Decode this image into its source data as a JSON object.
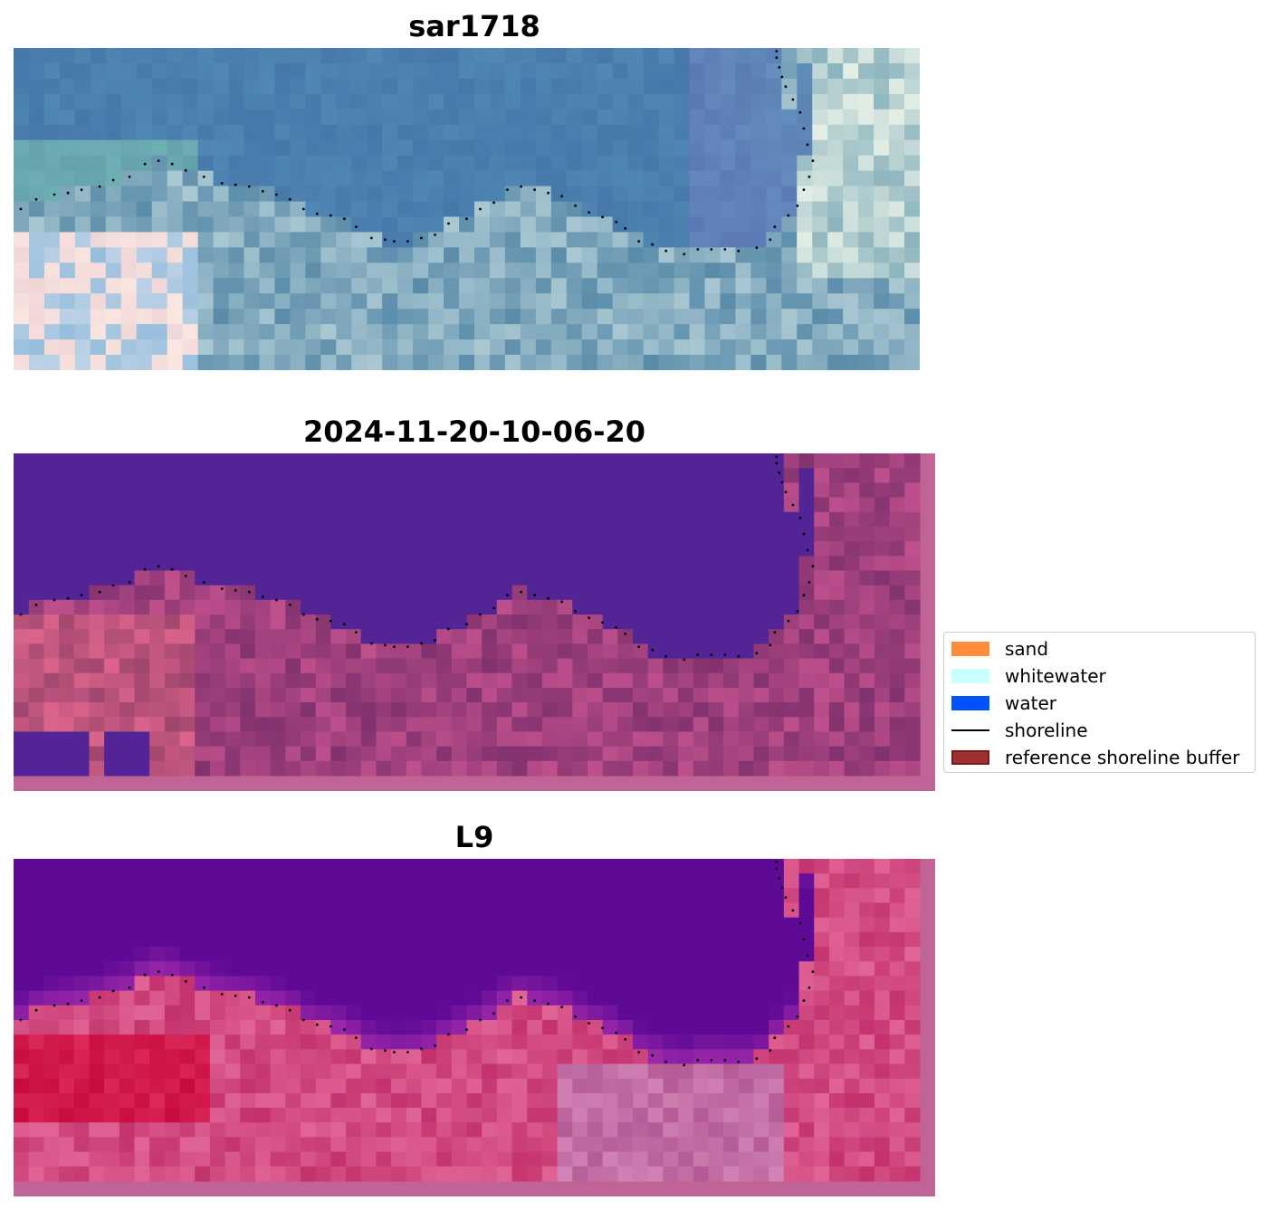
{
  "chart_data": [
    {
      "type": "image",
      "title": "sar1718",
      "render": "rgb",
      "image_grid": {
        "cols": 59,
        "rows": 21
      },
      "overlay": "shoreline"
    },
    {
      "type": "image",
      "title": "2024-11-20-10-06-20",
      "render": "classification",
      "image_grid": {
        "cols": 60,
        "rows": 22
      },
      "overlay": "shoreline"
    },
    {
      "type": "image",
      "title": "L9",
      "render": "index",
      "image_grid": {
        "cols": 60,
        "rows": 22
      },
      "overlay": "shoreline"
    }
  ],
  "legend": {
    "placement": "center-right",
    "items": [
      {
        "label": "sand",
        "kind": "patch",
        "color": "#ff8c3a"
      },
      {
        "label": "whitewater",
        "kind": "patch",
        "color": "#c8ffff"
      },
      {
        "label": "water",
        "kind": "patch",
        "color": "#0052ff"
      },
      {
        "label": "shoreline",
        "kind": "line",
        "color": "#000000"
      },
      {
        "label": "reference shoreline buffer",
        "kind": "patch",
        "color": "#9e3030",
        "edge": "#7a1a1a"
      }
    ]
  },
  "shoreline": {
    "description_units": "image-fraction",
    "x": [
      0.008,
      0.025,
      0.045,
      0.06,
      0.075,
      0.095,
      0.11,
      0.128,
      0.145,
      0.16,
      0.175,
      0.19,
      0.21,
      0.23,
      0.245,
      0.26,
      0.275,
      0.29,
      0.305,
      0.32,
      0.335,
      0.35,
      0.365,
      0.378,
      0.395,
      0.41,
      0.42,
      0.435,
      0.45,
      0.465,
      0.48,
      0.5,
      0.515,
      0.53,
      0.545,
      0.56,
      0.575,
      0.59,
      0.605,
      0.62,
      0.635,
      0.65,
      0.665,
      0.675,
      0.69,
      0.705,
      0.72,
      0.74,
      0.755,
      0.77,
      0.785,
      0.8,
      0.82,
      0.835,
      0.84,
      0.855,
      0.865,
      0.872,
      0.878,
      0.882,
      0.876,
      0.872,
      0.868,
      0.86,
      0.852,
      0.848,
      0.845,
      0.842,
      0.842
    ],
    "y": [
      0.5,
      0.47,
      0.455,
      0.45,
      0.44,
      0.43,
      0.41,
      0.4,
      0.36,
      0.35,
      0.36,
      0.38,
      0.4,
      0.42,
      0.425,
      0.43,
      0.445,
      0.455,
      0.47,
      0.5,
      0.515,
      0.52,
      0.53,
      0.555,
      0.59,
      0.595,
      0.6,
      0.6,
      0.59,
      0.58,
      0.545,
      0.53,
      0.5,
      0.48,
      0.44,
      0.43,
      0.44,
      0.45,
      0.46,
      0.49,
      0.51,
      0.525,
      0.54,
      0.56,
      0.6,
      0.61,
      0.63,
      0.64,
      0.625,
      0.625,
      0.625,
      0.63,
      0.62,
      0.595,
      0.555,
      0.52,
      0.49,
      0.44,
      0.4,
      0.35,
      0.3,
      0.25,
      0.2,
      0.16,
      0.12,
      0.09,
      0.06,
      0.03,
      0.01
    ]
  }
}
